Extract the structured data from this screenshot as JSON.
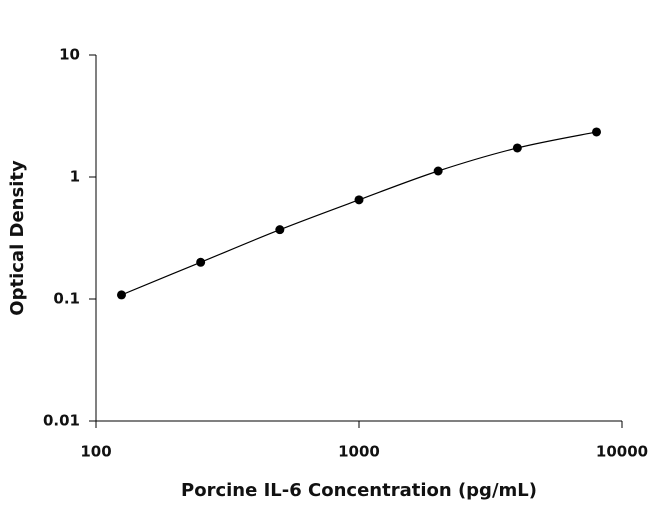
{
  "chart_data": {
    "type": "scatter",
    "log_x": true,
    "log_y": true,
    "fit_curve": true,
    "xlabel": "Porcine IL-6 Concentration (pg/mL)",
    "ylabel": "Optical Density",
    "x": [
      125,
      250,
      500,
      1000,
      2000,
      4000,
      8000
    ],
    "values": [
      0.108,
      0.2,
      0.37,
      0.65,
      1.12,
      1.73,
      2.34
    ],
    "color": "#000000",
    "xlim": [
      100,
      10000
    ],
    "xticks": [
      100,
      1000,
      10000
    ],
    "ylim": [
      0.01,
      10
    ],
    "yticks": [
      0.01,
      0.1,
      1,
      10
    ]
  }
}
